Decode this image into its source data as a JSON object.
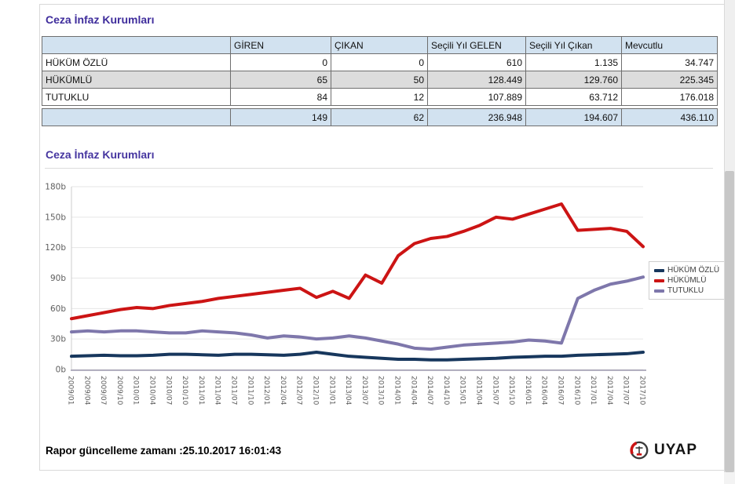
{
  "page": {
    "title": "Ceza İnfaz Kurumları",
    "footer_label": "Rapor güncelleme zamanı :",
    "footer_value": "25.10.2017 16:01:43",
    "logo_text": "UYAP"
  },
  "table": {
    "columns": [
      "",
      "GİREN",
      "ÇIKAN",
      "Seçili Yıl GELEN",
      "Seçili Yıl Çıkan",
      "Mevcutlu"
    ],
    "rows": [
      {
        "label": "HÜKÜM ÖZLÜ",
        "values": [
          "0",
          "0",
          "610",
          "1.135",
          "34.747"
        ]
      },
      {
        "label": "HÜKÜMLÜ",
        "values": [
          "65",
          "50",
          "128.449",
          "129.760",
          "225.345"
        ]
      },
      {
        "label": "TUTUKLU",
        "values": [
          "84",
          "12",
          "107.889",
          "63.712",
          "176.018"
        ]
      }
    ],
    "total": {
      "label": "",
      "values": [
        "149",
        "62",
        "236.948",
        "194.607",
        "436.110"
      ]
    }
  },
  "chart": {
    "title": "Ceza İnfaz Kurumları"
  },
  "chart_data": {
    "type": "line",
    "title": "Ceza İnfaz Kurumları",
    "x": [
      "2009/01",
      "2009/04",
      "2009/07",
      "2009/10",
      "2010/01",
      "2010/04",
      "2010/07",
      "2010/10",
      "2011/01",
      "2011/04",
      "2011/07",
      "2011/10",
      "2012/01",
      "2012/04",
      "2012/07",
      "2012/10",
      "2013/01",
      "2013/04",
      "2013/07",
      "2013/10",
      "2014/01",
      "2014/04",
      "2014/07",
      "2014/10",
      "2015/01",
      "2015/04",
      "2015/07",
      "2015/10",
      "2016/01",
      "2016/04",
      "2016/07",
      "2016/10",
      "2017/01",
      "2017/04",
      "2017/07",
      "2017/10"
    ],
    "unit": "b (thousands)",
    "ylim": [
      0,
      180
    ],
    "ytick_step": 30,
    "ytick_suffix": "b",
    "grid": true,
    "legend_position": "right",
    "series": [
      {
        "name": "HÜKÜM ÖZLÜ",
        "color": "#17375d",
        "values": [
          13,
          13.5,
          14,
          13.5,
          13.5,
          14,
          15,
          15,
          14.5,
          14,
          15,
          15,
          14.5,
          14,
          15,
          17,
          15,
          13,
          12,
          11,
          10,
          10,
          9.5,
          9.5,
          10,
          10.5,
          11,
          12,
          12.5,
          13,
          13,
          14,
          14.5,
          15,
          15.5,
          17
        ]
      },
      {
        "name": "HÜKÜMLÜ",
        "color": "#cc1414",
        "values": [
          50,
          53,
          56,
          59,
          61,
          60,
          63,
          65,
          67,
          70,
          72,
          74,
          76,
          78,
          80,
          71,
          77,
          70,
          93,
          85,
          112,
          124,
          129,
          131,
          136,
          142,
          150,
          148,
          153,
          158,
          163,
          137,
          138,
          139,
          136,
          121
        ]
      },
      {
        "name": "TUTUKLU",
        "color": "#7e77ab",
        "values": [
          37,
          38,
          37,
          38,
          38,
          37,
          36,
          36,
          38,
          37,
          36,
          34,
          31,
          33,
          32,
          30,
          31,
          33,
          31,
          28,
          25,
          21,
          20,
          22,
          24,
          25,
          26,
          27,
          29,
          28,
          26,
          70,
          78,
          84,
          87,
          91
        ]
      }
    ]
  },
  "colors": {
    "title_purple": "#3f2d9c",
    "table_header_bg": "#d2e2f0",
    "table_stripe_bg": "#dcdcdc",
    "grid_line": "#e6e6e6",
    "axis_text": "#5e5e5e"
  }
}
